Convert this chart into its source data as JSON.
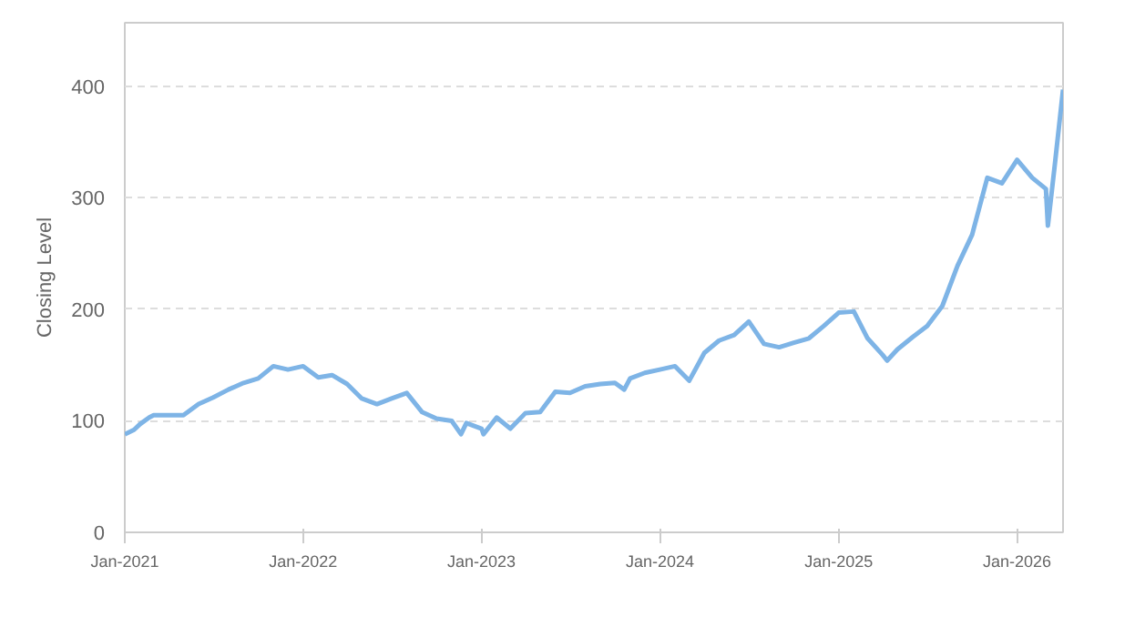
{
  "chart_data": {
    "type": "line",
    "ylabel": "Closing Level",
    "xlim": [
      "2021-01-01",
      "2026-04-05"
    ],
    "ylim": [
      0,
      457
    ],
    "yticks": [
      0,
      100,
      200,
      300,
      400
    ],
    "xticks": [
      {
        "value": "2021-01-01",
        "label": "Jan-2021"
      },
      {
        "value": "2022-01-01",
        "label": "Jan-2022"
      },
      {
        "value": "2023-01-01",
        "label": "Jan-2023"
      },
      {
        "value": "2024-01-01",
        "label": "Jan-2024"
      },
      {
        "value": "2025-01-01",
        "label": "Jan-2025"
      },
      {
        "value": "2026-01-01",
        "label": "Jan-2026"
      }
    ],
    "grid": true,
    "marker": "none",
    "line_style": "solid",
    "series": [
      {
        "color": "#7eb4e6",
        "x": [
          "2021-01-01",
          "2021-01-20",
          "2021-02-01",
          "2021-02-20",
          "2021-03-01",
          "2021-04-01",
          "2021-05-01",
          "2021-06-01",
          "2021-07-01",
          "2021-08-01",
          "2021-09-01",
          "2021-10-01",
          "2021-11-01",
          "2021-12-01",
          "2022-01-01",
          "2022-02-01",
          "2022-03-01",
          "2022-04-01",
          "2022-05-01",
          "2022-06-01",
          "2022-07-01",
          "2022-08-01",
          "2022-09-01",
          "2022-10-01",
          "2022-11-01",
          "2022-11-20",
          "2022-12-01",
          "2023-01-01",
          "2023-01-05",
          "2023-02-01",
          "2023-03-01",
          "2023-04-01",
          "2023-05-01",
          "2023-06-01",
          "2023-07-01",
          "2023-08-01",
          "2023-09-01",
          "2023-10-01",
          "2023-10-20",
          "2023-11-01",
          "2023-12-01",
          "2024-01-01",
          "2024-02-01",
          "2024-03-01",
          "2024-04-01",
          "2024-05-01",
          "2024-06-01",
          "2024-07-01",
          "2024-08-01",
          "2024-09-01",
          "2024-10-01",
          "2024-11-01",
          "2024-12-01",
          "2025-01-01",
          "2025-02-01",
          "2025-03-01",
          "2025-04-01",
          "2025-04-10",
          "2025-05-01",
          "2025-06-01",
          "2025-07-01",
          "2025-08-01",
          "2025-09-01",
          "2025-10-01",
          "2025-11-01",
          "2025-12-01",
          "2026-01-01",
          "2026-02-01",
          "2026-03-01",
          "2026-03-05",
          "2026-03-20",
          "2026-04-05"
        ],
        "values": [
          88,
          92,
          97,
          103,
          105,
          105,
          105,
          115,
          121,
          128,
          134,
          138,
          149,
          146,
          149,
          139,
          141,
          133,
          120,
          115,
          120,
          125,
          108,
          102,
          100,
          88,
          98,
          93,
          88,
          103,
          93,
          107,
          108,
          126,
          125,
          131,
          133,
          134,
          128,
          138,
          143,
          146,
          149,
          136,
          161,
          172,
          177,
          189,
          169,
          166,
          170,
          174,
          185,
          197,
          198,
          174,
          159,
          154,
          164,
          175,
          185,
          203,
          239,
          267,
          318,
          313,
          334,
          318,
          308,
          275,
          333,
          397
        ]
      }
    ]
  }
}
